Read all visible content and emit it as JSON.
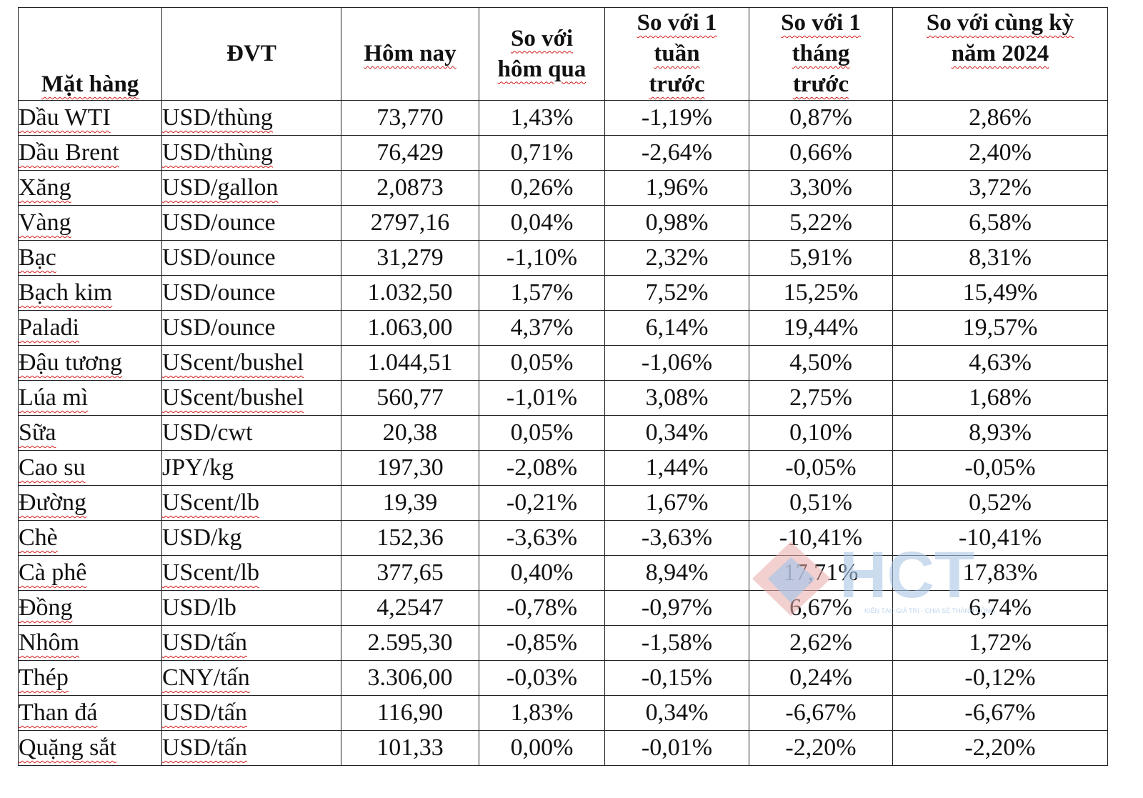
{
  "table": {
    "headers": {
      "item": "Mặt hàng",
      "unit": "ĐVT",
      "today": "Hôm nay",
      "vs_yesterday_1": "So với",
      "vs_yesterday_2": "hôm qua",
      "vs_week_1": "So với 1",
      "vs_week_2": "tuần",
      "vs_week_3": "trước",
      "vs_month_1": "So với 1",
      "vs_month_2": "tháng",
      "vs_month_3": "trước",
      "vs_year_1": "So với cùng kỳ",
      "vs_year_2": "năm 2024"
    },
    "rows": [
      {
        "item": "Dầu WTI",
        "unit": "USD/thùng",
        "today": "73,770",
        "vs_yesterday": "1,43%",
        "vs_week": "-1,19%",
        "vs_month": "0,87%",
        "vs_year": "2,86%"
      },
      {
        "item": "Dầu Brent",
        "unit": "USD/thùng",
        "today": "76,429",
        "vs_yesterday": "0,71%",
        "vs_week": "-2,64%",
        "vs_month": "0,66%",
        "vs_year": "2,40%"
      },
      {
        "item": "Xăng",
        "unit": "USD/gallon",
        "today": "2,0873",
        "vs_yesterday": "0,26%",
        "vs_week": "1,96%",
        "vs_month": "3,30%",
        "vs_year": "3,72%"
      },
      {
        "item": "Vàng",
        "unit": "USD/ounce",
        "today": "2797,16",
        "vs_yesterday": "0,04%",
        "vs_week": "0,98%",
        "vs_month": "5,22%",
        "vs_year": "6,58%"
      },
      {
        "item": "Bạc",
        "unit": "USD/ounce",
        "today": "31,279",
        "vs_yesterday": "-1,10%",
        "vs_week": "2,32%",
        "vs_month": "5,91%",
        "vs_year": "8,31%"
      },
      {
        "item": "Bạch kim",
        "unit": "USD/ounce",
        "today": "1.032,50",
        "vs_yesterday": "1,57%",
        "vs_week": "7,52%",
        "vs_month": "15,25%",
        "vs_year": "15,49%"
      },
      {
        "item": "Paladi",
        "unit": "USD/ounce",
        "today": "1.063,00",
        "vs_yesterday": "4,37%",
        "vs_week": "6,14%",
        "vs_month": "19,44%",
        "vs_year": "19,57%"
      },
      {
        "item": "Đậu tương",
        "unit": "UScent/bushel",
        "today": "1.044,51",
        "vs_yesterday": "0,05%",
        "vs_week": "-1,06%",
        "vs_month": "4,50%",
        "vs_year": "4,63%"
      },
      {
        "item": "Lúa mì",
        "unit": "UScent/bushel",
        "today": "560,77",
        "vs_yesterday": "-1,01%",
        "vs_week": "3,08%",
        "vs_month": "2,75%",
        "vs_year": "1,68%"
      },
      {
        "item": "Sữa",
        "unit": "USD/cwt",
        "today": "20,38",
        "vs_yesterday": "0,05%",
        "vs_week": "0,34%",
        "vs_month": "0,10%",
        "vs_year": "8,93%"
      },
      {
        "item": "Cao su",
        "unit": "JPY/kg",
        "today": "197,30",
        "vs_yesterday": "-2,08%",
        "vs_week": "1,44%",
        "vs_month": "-0,05%",
        "vs_year": "-0,05%"
      },
      {
        "item": "Đường",
        "unit": "UScent/lb",
        "today": "19,39",
        "vs_yesterday": "-0,21%",
        "vs_week": "1,67%",
        "vs_month": "0,51%",
        "vs_year": "0,52%"
      },
      {
        "item": "Chè",
        "unit": "USD/kg",
        "today": "152,36",
        "vs_yesterday": "-3,63%",
        "vs_week": "-3,63%",
        "vs_month": "-10,41%",
        "vs_year": "-10,41%"
      },
      {
        "item": "Cà phê",
        "unit": "UScent/lb",
        "today": "377,65",
        "vs_yesterday": "0,40%",
        "vs_week": "8,94%",
        "vs_month": "17,71%",
        "vs_year": "17,83%"
      },
      {
        "item": "Đồng",
        "unit": "USD/lb",
        "today": "4,2547",
        "vs_yesterday": "-0,78%",
        "vs_week": "-0,97%",
        "vs_month": "6,67%",
        "vs_year": "6,74%"
      },
      {
        "item": "Nhôm",
        "unit": "USD/tấn",
        "today": "2.595,30",
        "vs_yesterday": "-0,85%",
        "vs_week": "-1,58%",
        "vs_month": "2,62%",
        "vs_year": "1,72%"
      },
      {
        "item": "Thép",
        "unit": "CNY/tấn",
        "today": "3.306,00",
        "vs_yesterday": "-0,03%",
        "vs_week": "-0,15%",
        "vs_month": "0,24%",
        "vs_year": "-0,12%"
      },
      {
        "item": "Than đá",
        "unit": "USD/tấn",
        "today": "116,90",
        "vs_yesterday": "1,83%",
        "vs_week": "0,34%",
        "vs_month": "-6,67%",
        "vs_year": "-6,67%"
      },
      {
        "item": "Quặng sắt",
        "unit": "USD/tấn",
        "today": "101,33",
        "vs_yesterday": "0,00%",
        "vs_week": "-0,01%",
        "vs_month": "-2,20%",
        "vs_year": "-2,20%"
      }
    ]
  },
  "watermark": {
    "brand": "HCT",
    "tagline": "KIẾN TẠO GIÁ TRỊ - CHIA SẺ THÀNH CÔNG",
    "colors": {
      "diamond_red": "#e9a9a9",
      "diamond_blue": "#a9c6e6",
      "text_blue": "#a9c6e6"
    }
  },
  "spellcheck_color": "#d11a1a"
}
